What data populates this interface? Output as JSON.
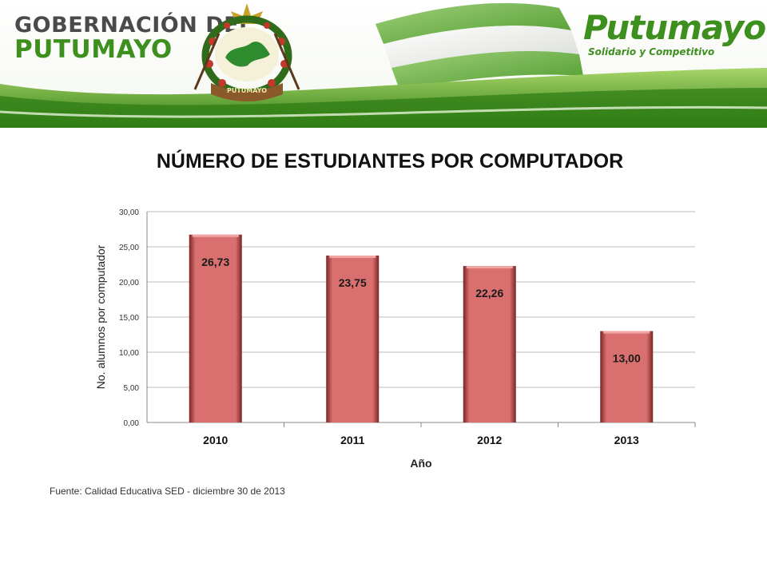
{
  "header": {
    "gov_line1": "GOBERNACIÓN DEL",
    "gov_line2": "PUTUMAYO",
    "emblem_banner": "PUTUMAYO",
    "brand_name": "Putumayo",
    "brand_tagline": "Solidario y Competitivo",
    "colors": {
      "green": "#3d8f1e",
      "light_green": "#8cc63f",
      "flag_white": "#ffffff",
      "gray": "#4a4a4a"
    }
  },
  "title": "NÚMERO DE ESTUDIANTES POR COMPUTADOR",
  "source": "Fuente: Calidad Educativa SED - diciembre 30 de 2013",
  "chart_data": {
    "type": "bar",
    "categories": [
      "2010",
      "2011",
      "2012",
      "2013"
    ],
    "values": [
      26.73,
      23.75,
      22.26,
      13.0
    ],
    "data_labels": [
      "26,73",
      "23,75",
      "22,26",
      "13,00"
    ],
    "xlabel": "Año",
    "ylabel": "No. alumnos por computador",
    "ylim": [
      0,
      30
    ],
    "yticks": [
      0,
      5,
      10,
      15,
      20,
      25,
      30
    ],
    "ytick_labels": [
      "0,00",
      "5,00",
      "10,00",
      "15,00",
      "20,00",
      "25,00",
      "30,00"
    ],
    "grid": true,
    "legend": "none",
    "bar_color": "#d9706f"
  }
}
